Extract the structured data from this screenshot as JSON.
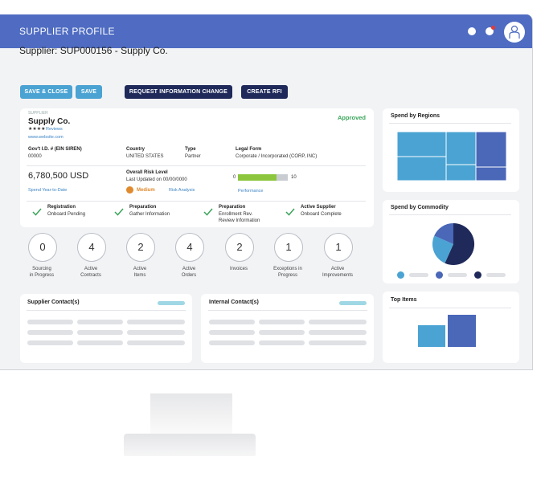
{
  "header": {
    "title": "SUPPLIER PROFILE"
  },
  "supplier_heading": "Supplier: SUP000156 - Supply Co.",
  "buttons": {
    "save_close": "SAVE & CLOSE",
    "save": "SAVE",
    "request_change": "REQUEST INFORMATION CHANGE",
    "create_rfi": "CREATE RFI"
  },
  "profile": {
    "small_label": "SUPPLIER",
    "name": "Supply Co.",
    "stars": "★★★★",
    "reviews_link": "Reviews",
    "website": "www.website.com",
    "status": "Approved",
    "fields": [
      {
        "label": "Gov't I.D. # (EIN SIREN)",
        "value": "00000"
      },
      {
        "label": "Country",
        "value": "UNITED STATES"
      },
      {
        "label": "Type",
        "value": "Partner"
      },
      {
        "label": "Legal Form",
        "value": "Corporate / Incorporated (CORP, INC)"
      }
    ],
    "spend_amount": "6,780,500 USD",
    "spend_link": "Spend Year-to-Date",
    "risk_label": "Overall Risk Level",
    "risk_updated": "Last Updated on 00/00/0000",
    "risk_level": "Medium",
    "risk_link": "Risk Analysis",
    "performance": {
      "min": "0",
      "max": "10",
      "fill": 0.78,
      "link": "Performance"
    }
  },
  "status_steps": [
    {
      "title": "Registration",
      "sub": "Onboard Pending"
    },
    {
      "title": "Preparation",
      "sub": "Gather Information"
    },
    {
      "title": "Preparation",
      "sub": "Enrollment Rev.",
      "sub2": "Review Information"
    },
    {
      "title": "Active Supplier",
      "sub": "Onboard Complete"
    }
  ],
  "counters": [
    {
      "count": "0",
      "label": "Sourcing",
      "label2": "in Progress"
    },
    {
      "count": "4",
      "label": "Active",
      "label2": "Contracts"
    },
    {
      "count": "2",
      "label": "Active",
      "label2": "Items"
    },
    {
      "count": "4",
      "label": "Active",
      "label2": "Orders"
    },
    {
      "count": "2",
      "label": "Invoices",
      "label2": ""
    },
    {
      "count": "1",
      "label": "Exceptions in",
      "label2": "Progress"
    },
    {
      "count": "1",
      "label": "Active",
      "label2": "Improvements"
    }
  ],
  "contacts": {
    "supplier_title": "Supplier Contact(s)",
    "internal_title": "Internal Contact(s)"
  },
  "widgets": {
    "regions_title": "Spend by Regions",
    "commodity_title": "Spend by Commodity",
    "top_items_title": "Top Items"
  },
  "colors": {
    "header": "#4f6cc2",
    "primary_light": "#4aa3d3",
    "primary_dark": "#1f2a5a",
    "approved": "#3aa55a",
    "risk_medium": "#e08a2e",
    "performance": "#8cc63e"
  }
}
